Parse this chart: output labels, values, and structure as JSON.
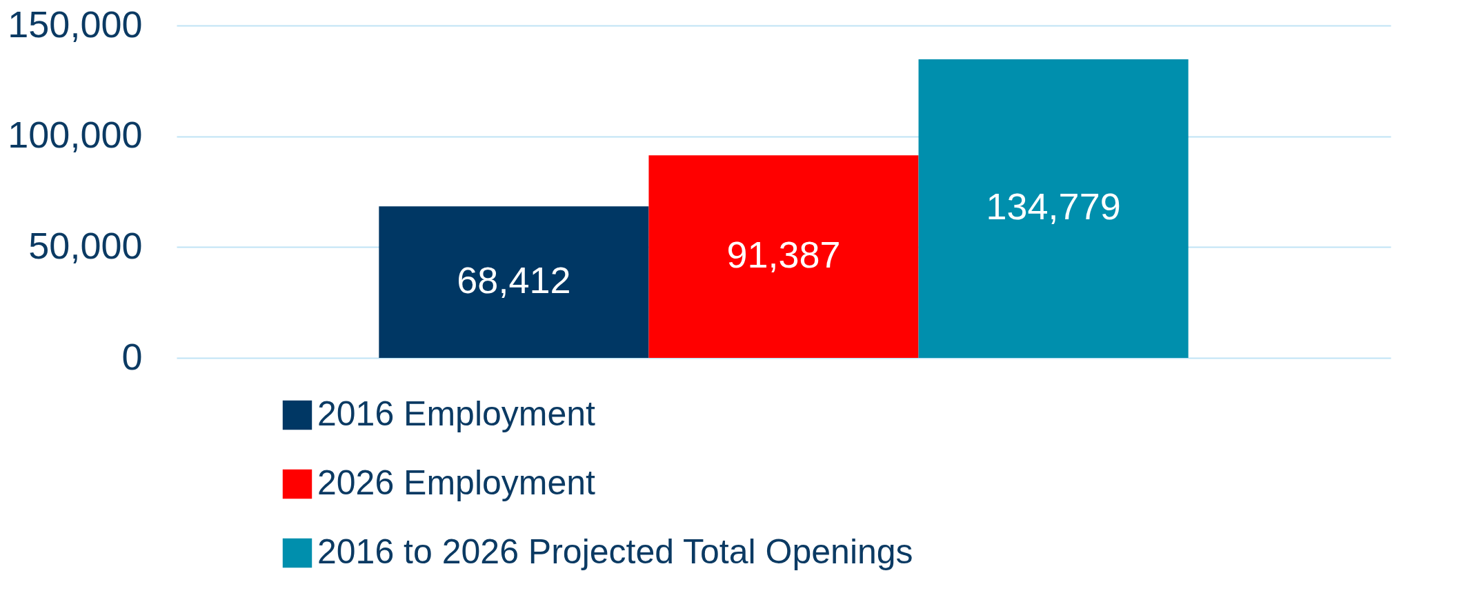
{
  "chart_data": {
    "type": "bar",
    "categories": [
      null
    ],
    "series": [
      {
        "name": "2016 Employment",
        "color": "#003764",
        "values": [
          68412
        ],
        "value_labels": [
          "68,412"
        ]
      },
      {
        "name": "2026 Employment",
        "color": "#ff0000",
        "values": [
          91387
        ],
        "value_labels": [
          "91,387"
        ]
      },
      {
        "name": "2016 to 2026 Projected Total Openings",
        "color": "#008fad",
        "values": [
          134779
        ],
        "value_labels": [
          "134,779"
        ]
      }
    ],
    "ylim": [
      0,
      150000
    ],
    "yticks": [
      0,
      {
        "value": 50000,
        "label": "50,000"
      },
      {
        "value": 100000,
        "label": "100,000"
      },
      {
        "value": 150000,
        "label": "150,000"
      }
    ],
    "grid": "y",
    "legend": "bottom",
    "tick_labels": "y"
  }
}
